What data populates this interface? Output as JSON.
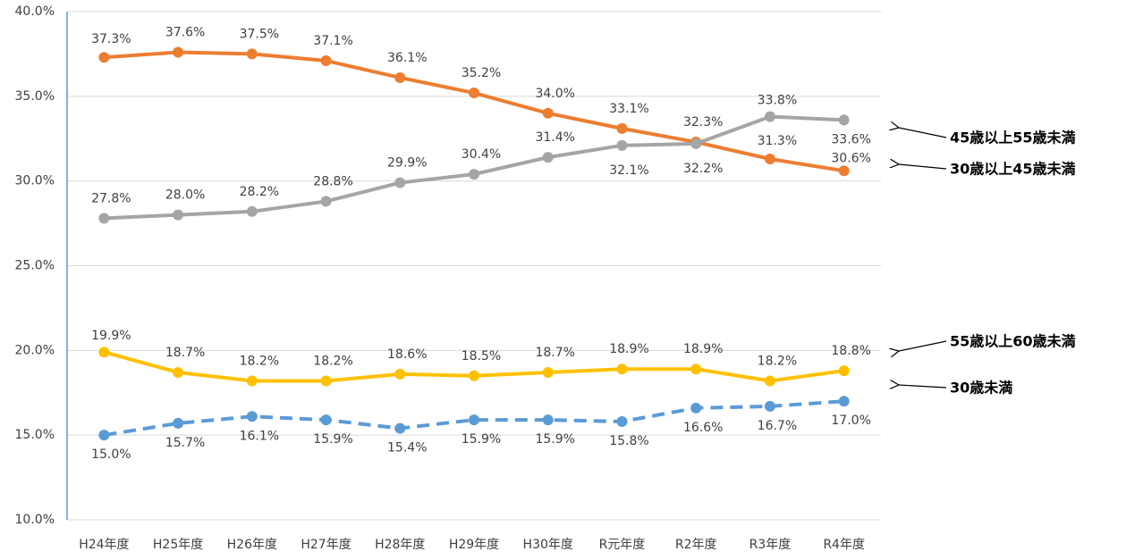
{
  "chart_data": {
    "type": "line",
    "categories": [
      "H24年度",
      "H25年度",
      "H26年度",
      "H27年度",
      "H28年度",
      "H29年度",
      "H30年度",
      "R元年度",
      "R2年度",
      "R3年度",
      "R4年度"
    ],
    "series": [
      {
        "name": "30歳以上45歳未満",
        "color": "#ED7D31",
        "dashed": false,
        "values": [
          37.3,
          37.6,
          37.5,
          37.1,
          36.1,
          35.2,
          34.0,
          33.1,
          32.3,
          31.3,
          30.6
        ],
        "value_labels": [
          "37.3%",
          "37.6%",
          "37.5%",
          "37.1%",
          "36.1%",
          "35.2%",
          "34.0%",
          "33.1%",
          "32.3%",
          "31.3%",
          "30.6%"
        ]
      },
      {
        "name": "45歳以上55歳未満",
        "color": "#A5A5A5",
        "dashed": false,
        "values": [
          27.8,
          28.0,
          28.2,
          28.8,
          29.9,
          30.4,
          31.4,
          32.1,
          32.2,
          33.8,
          33.6
        ],
        "value_labels": [
          "27.8%",
          "28.0%",
          "28.2%",
          "28.8%",
          "29.9%",
          "30.4%",
          "31.4%",
          "32.1%",
          "32.2%",
          "33.8%",
          "33.6%"
        ]
      },
      {
        "name": "55歳以上60歳未満",
        "color": "#FFC000",
        "dashed": false,
        "values": [
          19.9,
          18.7,
          18.2,
          18.2,
          18.6,
          18.5,
          18.7,
          18.9,
          18.9,
          18.2,
          18.8
        ],
        "value_labels": [
          "19.9%",
          "18.7%",
          "18.2%",
          "18.2%",
          "18.6%",
          "18.5%",
          "18.7%",
          "18.9%",
          "18.9%",
          "18.2%",
          "18.8%"
        ]
      },
      {
        "name": "30歳未満",
        "color": "#5B9BD5",
        "dashed": true,
        "values": [
          15.0,
          15.7,
          16.1,
          15.9,
          15.4,
          15.9,
          15.9,
          15.8,
          16.6,
          16.7,
          17.0
        ],
        "value_labels": [
          "15.0%",
          "15.7%",
          "16.1%",
          "15.9%",
          "15.4%",
          "15.9%",
          "15.9%",
          "15.8%",
          "16.6%",
          "16.7%",
          "17.0%"
        ]
      }
    ],
    "ylim": [
      10,
      40
    ],
    "yticks": [
      {
        "value": 10,
        "label": "10.0%"
      },
      {
        "value": 15,
        "label": "15.0%"
      },
      {
        "value": 20,
        "label": "20.0%"
      },
      {
        "value": 25,
        "label": "25.0%"
      },
      {
        "value": 30,
        "label": "30.0%"
      },
      {
        "value": 35,
        "label": "35.0%"
      },
      {
        "value": 40,
        "label": "40.0%"
      }
    ],
    "grid": true
  }
}
